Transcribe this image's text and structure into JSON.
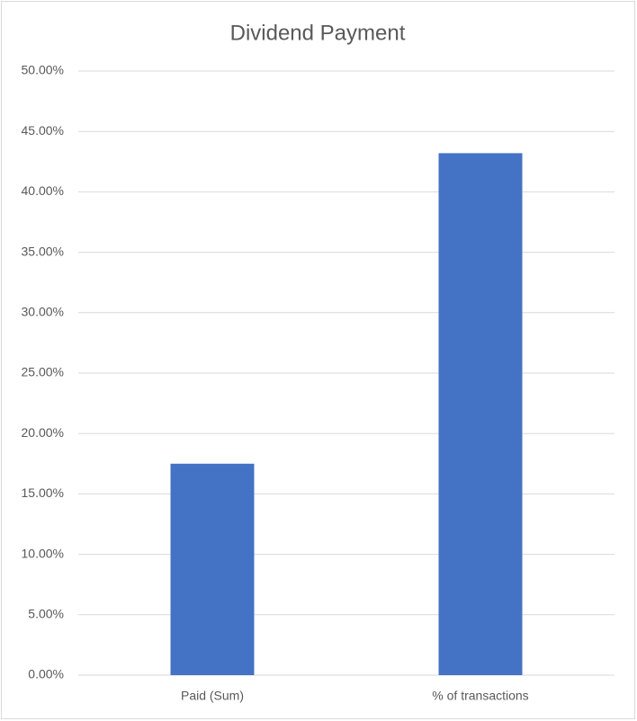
{
  "chart_data": {
    "type": "bar",
    "title": "Dividend Payment",
    "categories": [
      "Paid (Sum)",
      "% of transactions"
    ],
    "values": [
      17.5,
      43.2
    ],
    "color": "#4472c4",
    "ylim": [
      0,
      50
    ],
    "yticks": [
      {
        "value": 0,
        "label": "0.00%"
      },
      {
        "value": 5,
        "label": "5.00%"
      },
      {
        "value": 10,
        "label": "10.00%"
      },
      {
        "value": 15,
        "label": "15.00%"
      },
      {
        "value": 20,
        "label": "20.00%"
      },
      {
        "value": 25,
        "label": "25.00%"
      },
      {
        "value": 30,
        "label": "30.00%"
      },
      {
        "value": 35,
        "label": "35.00%"
      },
      {
        "value": 40,
        "label": "40.00%"
      },
      {
        "value": 45,
        "label": "45.00%"
      },
      {
        "value": 50,
        "label": "50.00%"
      }
    ],
    "grid": true
  }
}
